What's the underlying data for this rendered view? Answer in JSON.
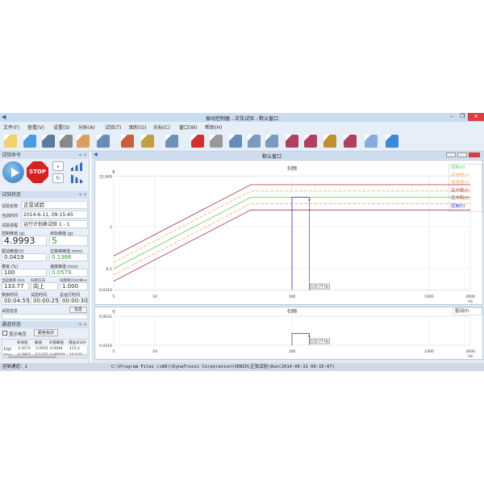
{
  "window": {
    "title": "振动控制器 - 正弦试验 - 默认窗口"
  },
  "menu": [
    "文件(F)",
    "查看(V)",
    "设置(S)",
    "分析(A)",
    "试验(T)",
    "图形(G)",
    "光标(C)",
    "窗口(W)",
    "帮助(H)"
  ],
  "toolbar": [
    "open-folder-icon",
    "save-icon",
    "settings-icon",
    "print-icon",
    "report-icon",
    "export-icon",
    "test-setup-icon",
    "edit-icon",
    "window-icon",
    "stop-window-icon",
    "hand-icon",
    "zoom-in-icon",
    "zoom-box-icon",
    "zoom-fit-icon",
    "spectrum-icon",
    "spectrum-peak-icon",
    "cursor-icon",
    "spectrum-line-icon",
    "flag-icon",
    "comment-icon"
  ],
  "commands": {
    "title": "试验命令",
    "stop_label": "STOP"
  },
  "test_status": {
    "title": "试验状态",
    "name_label": "试验名称",
    "name": "正弦试验",
    "time_label": "当前时间",
    "time": "2014-6-11, 09:15:45",
    "progress_label": "试验进程",
    "progress": "运行计划表试验 1 - 1",
    "ctrl_peak_label": "控制峰值 (g)",
    "ctrl_peak": "4.9993",
    "target_peak_label": "目标峰值 (g)",
    "target_peak": "5",
    "drive_peak_label": "驱动峰值(V)",
    "drive_peak": "0.0419",
    "disp_label": "位移峰峰值 (mm)",
    "disp": "0.1366",
    "level_label": "量级 (%)",
    "level": "100",
    "vel_label": "速度峰值 (m/s)",
    "vel": "0.0579",
    "freq_label": "当前频率 (Hz)",
    "freq": "133.77",
    "dir_label": "扫频方向",
    "dir": "向上",
    "rate_label": "扫频率(Oct/Min)",
    "rate": "1.000",
    "remain_label": "剩余时间",
    "remain": "00:04:55",
    "test_time_label": "试验时间",
    "test_time": "00:00:25",
    "total_label": "总运行时间",
    "total": "00:00:30",
    "info_label": "试验信息",
    "info_button": "信息"
  },
  "channel_status": {
    "title": "通道状态",
    "show_voltage": "显示电压",
    "color_button": "颜色标识",
    "columns": [
      "有效值",
      "峰值",
      "外部峰值",
      "增益(EU/V"
    ],
    "rows": [
      {
        "ch": "1(g)",
        "values": [
          "3.3573",
          "5.0055",
          "0.0044",
          "115.2"
        ]
      },
      {
        "ch": "2(g)",
        "values": [
          "0.2867",
          "0.1472",
          "0.00020",
          "10.532"
        ]
      }
    ]
  },
  "main": {
    "window_title": "默认窗口"
  },
  "statusbar": {
    "channel": "控制通道：1",
    "path": "C:\\Program Files (x86)\\DynaTronic Corporation\\VENZO\\正弦试验\\Run(2014-06-11 09-15-07)"
  },
  "colors": {
    "target": "#5cc85c",
    "alarm": "#f0b060",
    "abort": "#b03050",
    "control": "#3030b0",
    "cursor": "#555555"
  },
  "chart_data": [
    {
      "type": "line",
      "title": "扫频",
      "ylabel": "g",
      "xlabel": "Hz",
      "xscale": "log",
      "yscale": "log",
      "xlim": [
        5,
        2000
      ],
      "ylim": [
        0.0316,
        15.849
      ],
      "xticks": [
        "5",
        "10",
        "100",
        "1000",
        "2000"
      ],
      "yticks": [
        "15.849",
        "1",
        "0.1",
        "0.0316"
      ],
      "grid": true,
      "legend": "top-right",
      "series": [
        {
          "name": "目标(f)",
          "x": [
            5,
            50,
            2000
          ],
          "y": [
            0.1,
            5,
            5
          ]
        },
        {
          "name": "高报警(f)",
          "x": [
            5,
            50,
            2000
          ],
          "y": [
            0.141,
            7.07,
            7.07
          ]
        },
        {
          "name": "低报警(f)",
          "x": [
            5,
            50,
            2000
          ],
          "y": [
            0.0707,
            3.54,
            3.54
          ]
        },
        {
          "name": "高中断(f)",
          "x": [
            5,
            50,
            2000
          ],
          "y": [
            0.2,
            10,
            10
          ]
        },
        {
          "name": "低中断(f)",
          "x": [
            5,
            50,
            2000
          ],
          "y": [
            0.05,
            2.5,
            2.5
          ]
        },
        {
          "name": "控制(f)",
          "x": [
            100,
            100,
            133.77
          ],
          "y": [
            0.0316,
            5,
            5
          ]
        }
      ],
      "cursor": {
        "x": 133.77,
        "label": "133.77 Hz"
      }
    },
    {
      "type": "line",
      "title": "扫频",
      "ylabel": "V",
      "xlabel": "Hz",
      "xscale": "log",
      "yscale": "log",
      "xlim": [
        5,
        2000
      ],
      "ylim": [
        0.0316,
        0.0631
      ],
      "xticks": [
        "5",
        "10",
        "100",
        "1000",
        "2000"
      ],
      "yticks": [
        "0.0631",
        "0.0316"
      ],
      "grid": true,
      "legend": "top-right",
      "series": [
        {
          "name": "驱动(f)",
          "x": [
            100,
            100,
            133.77
          ],
          "y": [
            0.0316,
            0.0419,
            0.0419
          ]
        }
      ],
      "cursor": {
        "x": 133.77,
        "label": "133.77 Hz"
      }
    }
  ]
}
